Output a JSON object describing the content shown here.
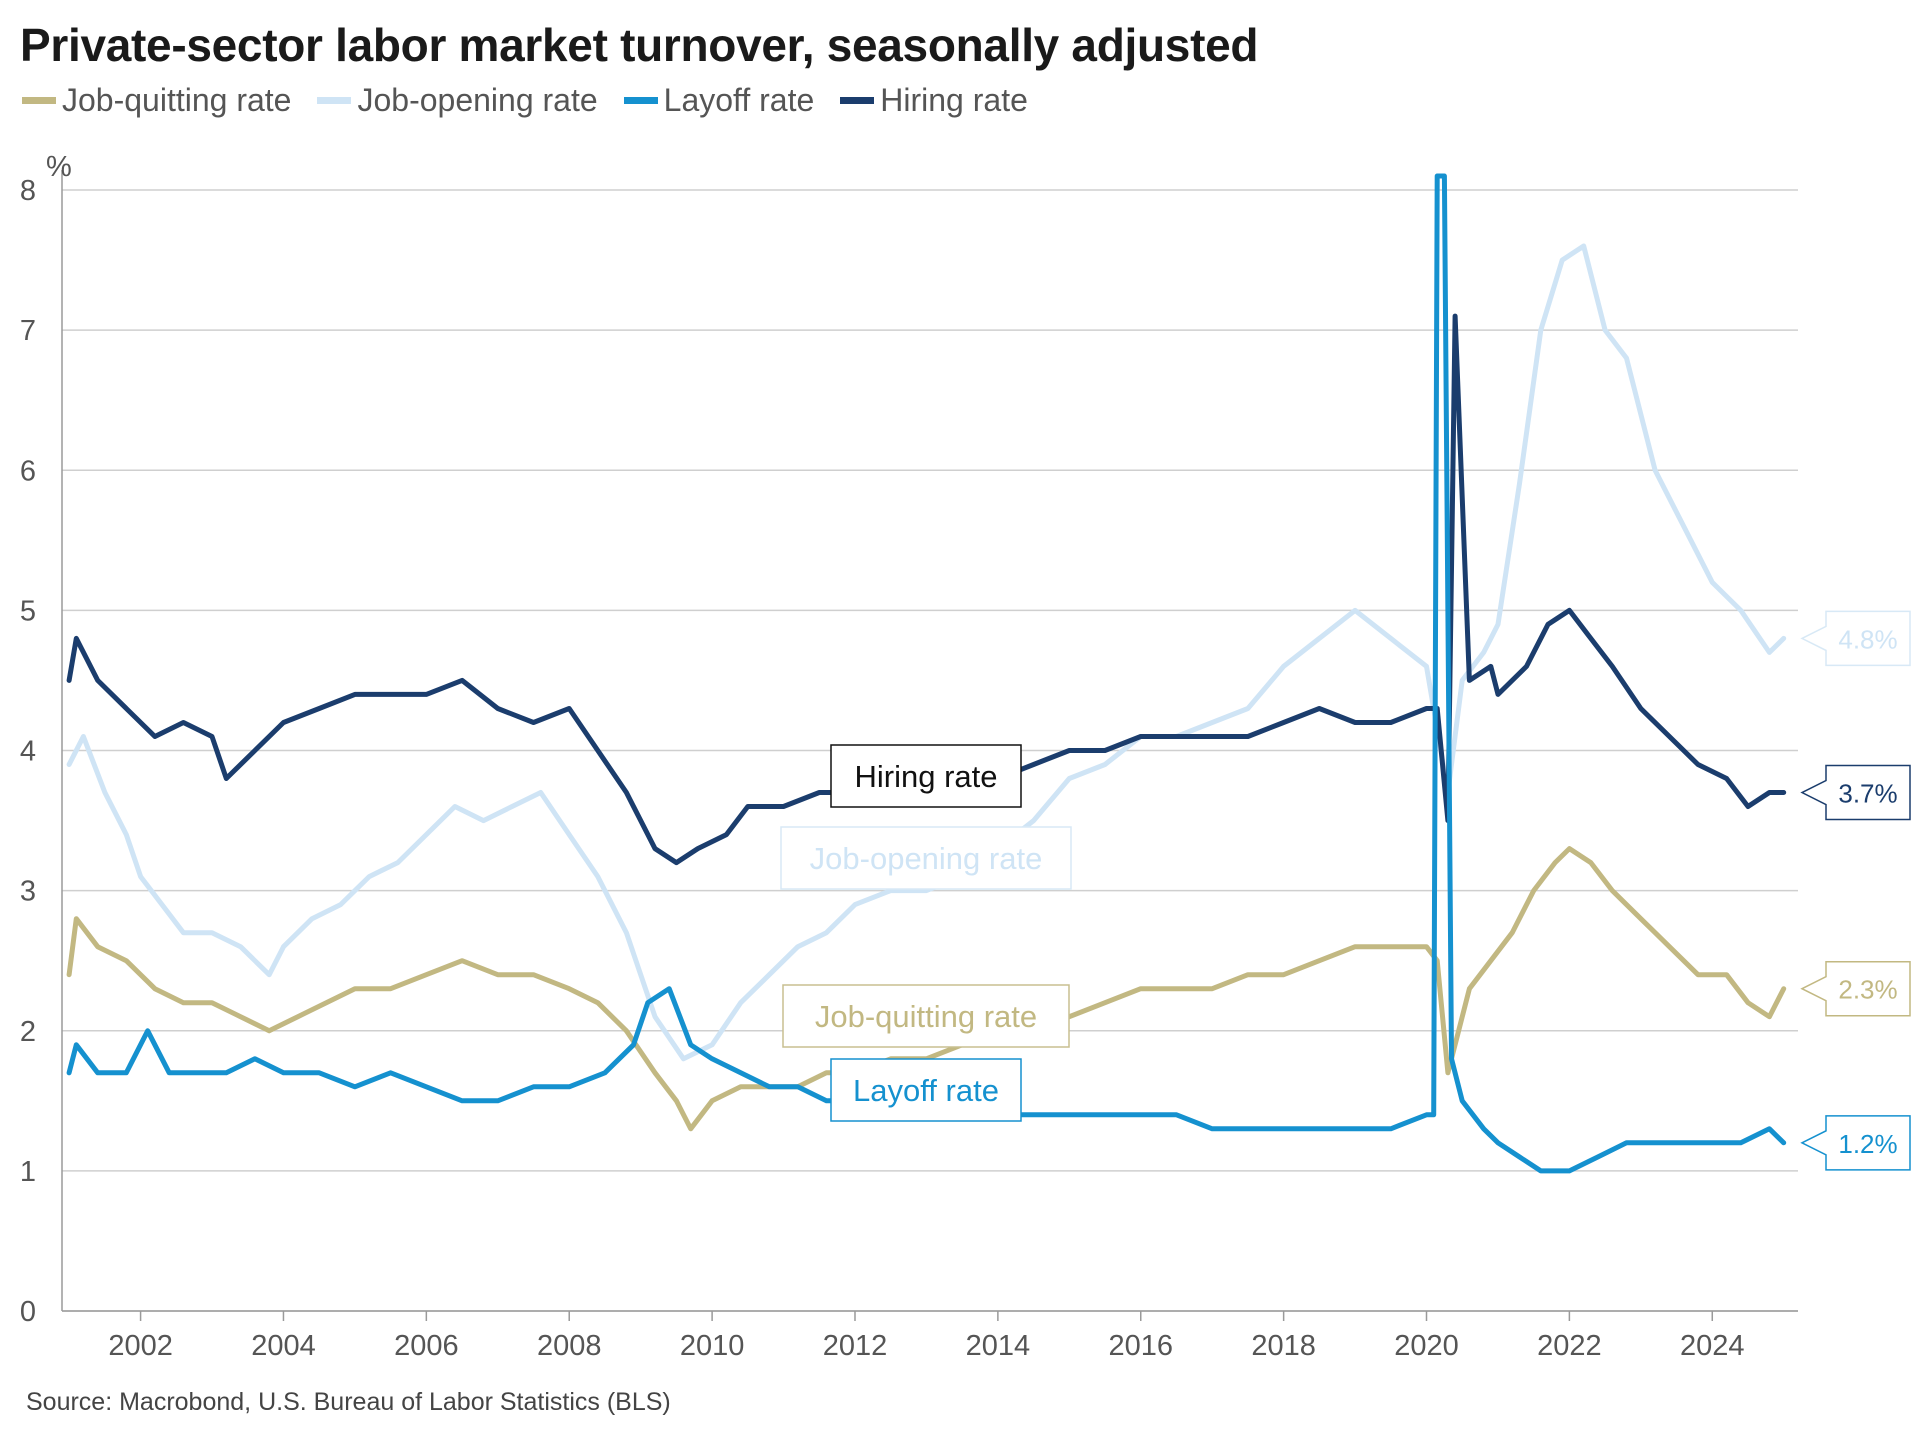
{
  "title": "Private-sector labor market turnover, seasonally adjusted",
  "legend": [
    {
      "label": "Job-quitting rate",
      "color": "#c2b882"
    },
    {
      "label": "Job-opening rate",
      "color": "#cfe4f5"
    },
    {
      "label": "Layoff rate",
      "color": "#1591cf"
    },
    {
      "label": "Hiring rate",
      "color": "#1b3d6d"
    }
  ],
  "source": "Source: Macrobond, U.S. Bureau of Labor Statistics (BLS)",
  "chart_data": {
    "type": "line",
    "y_unit_label": "%",
    "ylim": [
      0,
      8
    ],
    "xlim": [
      2000.9,
      2025.2
    ],
    "y_ticks": [
      "0",
      "1",
      "2",
      "3",
      "4",
      "5",
      "6",
      "7",
      "8"
    ],
    "x_ticks": [
      "2002",
      "2004",
      "2006",
      "2008",
      "2010",
      "2012",
      "2014",
      "2016",
      "2018",
      "2020",
      "2022",
      "2024"
    ],
    "grid": true,
    "legend_position": "top-left",
    "series": [
      {
        "name": "Job-opening rate",
        "color": "#cfe4f5",
        "label": "Job-opening rate",
        "end_label": "4.8%",
        "points": [
          [
            2001.0,
            3.9
          ],
          [
            2001.2,
            4.1
          ],
          [
            2001.5,
            3.7
          ],
          [
            2001.8,
            3.4
          ],
          [
            2002.0,
            3.1
          ],
          [
            2002.3,
            2.9
          ],
          [
            2002.6,
            2.7
          ],
          [
            2003.0,
            2.7
          ],
          [
            2003.4,
            2.6
          ],
          [
            2003.8,
            2.4
          ],
          [
            2004.0,
            2.6
          ],
          [
            2004.4,
            2.8
          ],
          [
            2004.8,
            2.9
          ],
          [
            2005.2,
            3.1
          ],
          [
            2005.6,
            3.2
          ],
          [
            2006.0,
            3.4
          ],
          [
            2006.4,
            3.6
          ],
          [
            2006.8,
            3.5
          ],
          [
            2007.2,
            3.6
          ],
          [
            2007.6,
            3.7
          ],
          [
            2008.0,
            3.4
          ],
          [
            2008.4,
            3.1
          ],
          [
            2008.8,
            2.7
          ],
          [
            2009.2,
            2.1
          ],
          [
            2009.6,
            1.8
          ],
          [
            2010.0,
            1.9
          ],
          [
            2010.4,
            2.2
          ],
          [
            2010.8,
            2.4
          ],
          [
            2011.2,
            2.6
          ],
          [
            2011.6,
            2.7
          ],
          [
            2012.0,
            2.9
          ],
          [
            2012.5,
            3.0
          ],
          [
            2013.0,
            3.0
          ],
          [
            2013.5,
            3.1
          ],
          [
            2014.0,
            3.3
          ],
          [
            2014.5,
            3.5
          ],
          [
            2015.0,
            3.8
          ],
          [
            2015.5,
            3.9
          ],
          [
            2016.0,
            4.1
          ],
          [
            2016.5,
            4.1
          ],
          [
            2017.0,
            4.2
          ],
          [
            2017.5,
            4.3
          ],
          [
            2018.0,
            4.6
          ],
          [
            2018.5,
            4.8
          ],
          [
            2019.0,
            5.0
          ],
          [
            2019.5,
            4.8
          ],
          [
            2020.0,
            4.6
          ],
          [
            2020.3,
            3.7
          ],
          [
            2020.5,
            4.5
          ],
          [
            2020.8,
            4.7
          ],
          [
            2021.0,
            4.9
          ],
          [
            2021.3,
            5.9
          ],
          [
            2021.6,
            7.0
          ],
          [
            2021.9,
            7.5
          ],
          [
            2022.2,
            7.6
          ],
          [
            2022.5,
            7.0
          ],
          [
            2022.8,
            6.8
          ],
          [
            2023.2,
            6.0
          ],
          [
            2023.6,
            5.6
          ],
          [
            2024.0,
            5.2
          ],
          [
            2024.4,
            5.0
          ],
          [
            2024.8,
            4.7
          ],
          [
            2025.0,
            4.8
          ]
        ]
      },
      {
        "name": "Hiring rate",
        "color": "#1b3d6d",
        "label": "Hiring rate",
        "end_label": "3.7%",
        "points": [
          [
            2001.0,
            4.5
          ],
          [
            2001.1,
            4.8
          ],
          [
            2001.4,
            4.5
          ],
          [
            2001.8,
            4.3
          ],
          [
            2002.2,
            4.1
          ],
          [
            2002.6,
            4.2
          ],
          [
            2003.0,
            4.1
          ],
          [
            2003.2,
            3.8
          ],
          [
            2003.6,
            4.0
          ],
          [
            2004.0,
            4.2
          ],
          [
            2004.5,
            4.3
          ],
          [
            2005.0,
            4.4
          ],
          [
            2005.5,
            4.4
          ],
          [
            2006.0,
            4.4
          ],
          [
            2006.5,
            4.5
          ],
          [
            2007.0,
            4.3
          ],
          [
            2007.5,
            4.2
          ],
          [
            2008.0,
            4.3
          ],
          [
            2008.4,
            4.0
          ],
          [
            2008.8,
            3.7
          ],
          [
            2009.2,
            3.3
          ],
          [
            2009.5,
            3.2
          ],
          [
            2009.8,
            3.3
          ],
          [
            2010.2,
            3.4
          ],
          [
            2010.5,
            3.6
          ],
          [
            2011.0,
            3.6
          ],
          [
            2011.5,
            3.7
          ],
          [
            2012.0,
            3.7
          ],
          [
            2012.5,
            3.7
          ],
          [
            2013.0,
            3.7
          ],
          [
            2013.5,
            3.8
          ],
          [
            2014.0,
            3.8
          ],
          [
            2014.5,
            3.9
          ],
          [
            2015.0,
            4.0
          ],
          [
            2015.5,
            4.0
          ],
          [
            2016.0,
            4.1
          ],
          [
            2016.5,
            4.1
          ],
          [
            2017.0,
            4.1
          ],
          [
            2017.5,
            4.1
          ],
          [
            2018.0,
            4.2
          ],
          [
            2018.5,
            4.3
          ],
          [
            2019.0,
            4.2
          ],
          [
            2019.5,
            4.2
          ],
          [
            2020.0,
            4.3
          ],
          [
            2020.15,
            4.3
          ],
          [
            2020.3,
            3.5
          ],
          [
            2020.4,
            7.1
          ],
          [
            2020.6,
            4.5
          ],
          [
            2020.9,
            4.6
          ],
          [
            2021.0,
            4.4
          ],
          [
            2021.4,
            4.6
          ],
          [
            2021.7,
            4.9
          ],
          [
            2022.0,
            5.0
          ],
          [
            2022.3,
            4.8
          ],
          [
            2022.6,
            4.6
          ],
          [
            2023.0,
            4.3
          ],
          [
            2023.4,
            4.1
          ],
          [
            2023.8,
            3.9
          ],
          [
            2024.2,
            3.8
          ],
          [
            2024.5,
            3.6
          ],
          [
            2024.8,
            3.7
          ],
          [
            2025.0,
            3.7
          ]
        ]
      },
      {
        "name": "Job-quitting rate",
        "color": "#c2b882",
        "label": "Job-quitting rate",
        "end_label": "2.3%",
        "points": [
          [
            2001.0,
            2.4
          ],
          [
            2001.1,
            2.8
          ],
          [
            2001.4,
            2.6
          ],
          [
            2001.8,
            2.5
          ],
          [
            2002.2,
            2.3
          ],
          [
            2002.6,
            2.2
          ],
          [
            2003.0,
            2.2
          ],
          [
            2003.4,
            2.1
          ],
          [
            2003.8,
            2.0
          ],
          [
            2004.2,
            2.1
          ],
          [
            2004.6,
            2.2
          ],
          [
            2005.0,
            2.3
          ],
          [
            2005.5,
            2.3
          ],
          [
            2006.0,
            2.4
          ],
          [
            2006.5,
            2.5
          ],
          [
            2007.0,
            2.4
          ],
          [
            2007.5,
            2.4
          ],
          [
            2008.0,
            2.3
          ],
          [
            2008.4,
            2.2
          ],
          [
            2008.8,
            2.0
          ],
          [
            2009.2,
            1.7
          ],
          [
            2009.5,
            1.5
          ],
          [
            2009.7,
            1.3
          ],
          [
            2010.0,
            1.5
          ],
          [
            2010.4,
            1.6
          ],
          [
            2010.8,
            1.6
          ],
          [
            2011.2,
            1.6
          ],
          [
            2011.6,
            1.7
          ],
          [
            2012.0,
            1.7
          ],
          [
            2012.5,
            1.8
          ],
          [
            2013.0,
            1.8
          ],
          [
            2013.5,
            1.9
          ],
          [
            2014.0,
            2.0
          ],
          [
            2014.5,
            2.0
          ],
          [
            2015.0,
            2.1
          ],
          [
            2015.5,
            2.2
          ],
          [
            2016.0,
            2.3
          ],
          [
            2016.5,
            2.3
          ],
          [
            2017.0,
            2.3
          ],
          [
            2017.5,
            2.4
          ],
          [
            2018.0,
            2.4
          ],
          [
            2018.5,
            2.5
          ],
          [
            2019.0,
            2.6
          ],
          [
            2019.5,
            2.6
          ],
          [
            2020.0,
            2.6
          ],
          [
            2020.15,
            2.5
          ],
          [
            2020.3,
            1.7
          ],
          [
            2020.6,
            2.3
          ],
          [
            2020.9,
            2.5
          ],
          [
            2021.2,
            2.7
          ],
          [
            2021.5,
            3.0
          ],
          [
            2021.8,
            3.2
          ],
          [
            2022.0,
            3.3
          ],
          [
            2022.3,
            3.2
          ],
          [
            2022.6,
            3.0
          ],
          [
            2023.0,
            2.8
          ],
          [
            2023.4,
            2.6
          ],
          [
            2023.8,
            2.4
          ],
          [
            2024.2,
            2.4
          ],
          [
            2024.5,
            2.2
          ],
          [
            2024.8,
            2.1
          ],
          [
            2025.0,
            2.3
          ]
        ]
      },
      {
        "name": "Layoff rate",
        "color": "#1591cf",
        "label": "Layoff rate",
        "end_label": "1.2%",
        "points": [
          [
            2001.0,
            1.7
          ],
          [
            2001.1,
            1.9
          ],
          [
            2001.4,
            1.7
          ],
          [
            2001.8,
            1.7
          ],
          [
            2002.1,
            2.0
          ],
          [
            2002.4,
            1.7
          ],
          [
            2002.8,
            1.7
          ],
          [
            2003.2,
            1.7
          ],
          [
            2003.6,
            1.8
          ],
          [
            2004.0,
            1.7
          ],
          [
            2004.5,
            1.7
          ],
          [
            2005.0,
            1.6
          ],
          [
            2005.5,
            1.7
          ],
          [
            2006.0,
            1.6
          ],
          [
            2006.5,
            1.5
          ],
          [
            2007.0,
            1.5
          ],
          [
            2007.5,
            1.6
          ],
          [
            2008.0,
            1.6
          ],
          [
            2008.5,
            1.7
          ],
          [
            2008.9,
            1.9
          ],
          [
            2009.1,
            2.2
          ],
          [
            2009.4,
            2.3
          ],
          [
            2009.7,
            1.9
          ],
          [
            2010.0,
            1.8
          ],
          [
            2010.4,
            1.7
          ],
          [
            2010.8,
            1.6
          ],
          [
            2011.2,
            1.6
          ],
          [
            2011.6,
            1.5
          ],
          [
            2012.0,
            1.5
          ],
          [
            2012.5,
            1.5
          ],
          [
            2013.0,
            1.5
          ],
          [
            2013.5,
            1.5
          ],
          [
            2014.0,
            1.4
          ],
          [
            2014.5,
            1.4
          ],
          [
            2015.0,
            1.4
          ],
          [
            2015.5,
            1.4
          ],
          [
            2016.0,
            1.4
          ],
          [
            2016.5,
            1.4
          ],
          [
            2017.0,
            1.3
          ],
          [
            2017.5,
            1.3
          ],
          [
            2018.0,
            1.3
          ],
          [
            2018.5,
            1.3
          ],
          [
            2019.0,
            1.3
          ],
          [
            2019.5,
            1.3
          ],
          [
            2020.0,
            1.4
          ],
          [
            2020.1,
            1.4
          ],
          [
            2020.15,
            8.1
          ],
          [
            2020.25,
            8.1
          ],
          [
            2020.35,
            1.8
          ],
          [
            2020.5,
            1.5
          ],
          [
            2020.8,
            1.3
          ],
          [
            2021.0,
            1.2
          ],
          [
            2021.3,
            1.1
          ],
          [
            2021.6,
            1.0
          ],
          [
            2022.0,
            1.0
          ],
          [
            2022.4,
            1.1
          ],
          [
            2022.8,
            1.2
          ],
          [
            2023.2,
            1.2
          ],
          [
            2023.6,
            1.2
          ],
          [
            2024.0,
            1.2
          ],
          [
            2024.4,
            1.2
          ],
          [
            2024.8,
            1.3
          ],
          [
            2025.0,
            1.2
          ]
        ]
      }
    ],
    "annotations": [
      "Hiring rate",
      "Job-opening rate",
      "Job-quitting rate",
      "Layoff rate"
    ]
  }
}
